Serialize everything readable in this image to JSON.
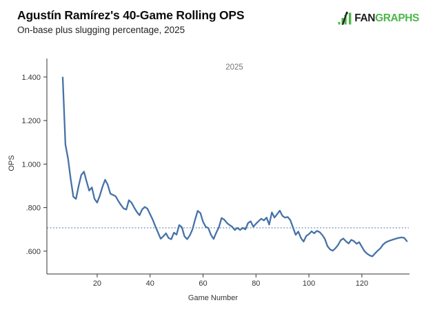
{
  "header": {
    "title": "Agustín Ramírez's 40-Game Rolling OPS",
    "subtitle": "On-base plus slugging percentage, 2025"
  },
  "logo": {
    "fan": "FAN",
    "graphs": "GRAPHS",
    "green": "#4db748",
    "dark": "#1e1e1e"
  },
  "chart_data": {
    "type": "line",
    "title": "Agustín Ramírez's 40-Game Rolling OPS",
    "subtitle": "On-base plus slugging percentage, 2025",
    "xlabel": "Game Number",
    "ylabel": "OPS",
    "legend": {
      "label": "2025",
      "position": "top-center"
    },
    "grid": false,
    "xlim": [
      1,
      138
    ],
    "ylim": [
      0.495,
      1.485
    ],
    "x_ticks": [
      20,
      40,
      60,
      80,
      100,
      120
    ],
    "y_ticks": [
      {
        "v": 1.4,
        "label": "1.400"
      },
      {
        "v": 1.2,
        "label": "1.200"
      },
      {
        "v": 1.0,
        "label": "1.000"
      },
      {
        "v": 0.8,
        "label": ".800"
      },
      {
        "v": 0.6,
        "label": ".600"
      }
    ],
    "reference_line": {
      "value": 0.707,
      "style": "dotted",
      "color": "#7e9cc2"
    },
    "line_color": "#4572a7",
    "axis_color": "#333333",
    "series": [
      {
        "name": "2025",
        "points": [
          [
            7,
            1.398
          ],
          [
            8,
            1.09
          ],
          [
            9,
            1.025
          ],
          [
            10,
            0.93
          ],
          [
            11,
            0.85
          ],
          [
            12,
            0.84
          ],
          [
            13,
            0.9
          ],
          [
            14,
            0.95
          ],
          [
            15,
            0.965
          ],
          [
            16,
            0.92
          ],
          [
            17,
            0.878
          ],
          [
            18,
            0.893
          ],
          [
            19,
            0.84
          ],
          [
            20,
            0.823
          ],
          [
            21,
            0.855
          ],
          [
            22,
            0.895
          ],
          [
            23,
            0.928
          ],
          [
            24,
            0.905
          ],
          [
            25,
            0.864
          ],
          [
            26,
            0.858
          ],
          [
            27,
            0.852
          ],
          [
            28,
            0.83
          ],
          [
            29,
            0.812
          ],
          [
            30,
            0.796
          ],
          [
            31,
            0.791
          ],
          [
            32,
            0.834
          ],
          [
            33,
            0.822
          ],
          [
            34,
            0.8
          ],
          [
            35,
            0.78
          ],
          [
            36,
            0.765
          ],
          [
            37,
            0.792
          ],
          [
            38,
            0.803
          ],
          [
            39,
            0.795
          ],
          [
            40,
            0.77
          ],
          [
            41,
            0.744
          ],
          [
            42,
            0.714
          ],
          [
            43,
            0.685
          ],
          [
            44,
            0.657
          ],
          [
            45,
            0.668
          ],
          [
            46,
            0.682
          ],
          [
            47,
            0.66
          ],
          [
            48,
            0.655
          ],
          [
            49,
            0.685
          ],
          [
            50,
            0.676
          ],
          [
            51,
            0.72
          ],
          [
            52,
            0.71
          ],
          [
            53,
            0.668
          ],
          [
            54,
            0.655
          ],
          [
            55,
            0.672
          ],
          [
            56,
            0.7
          ],
          [
            57,
            0.745
          ],
          [
            58,
            0.785
          ],
          [
            59,
            0.775
          ],
          [
            60,
            0.735
          ],
          [
            61,
            0.712
          ],
          [
            62,
            0.706
          ],
          [
            63,
            0.675
          ],
          [
            64,
            0.656
          ],
          [
            65,
            0.685
          ],
          [
            66,
            0.71
          ],
          [
            67,
            0.752
          ],
          [
            68,
            0.745
          ],
          [
            69,
            0.73
          ],
          [
            70,
            0.72
          ],
          [
            71,
            0.712
          ],
          [
            72,
            0.697
          ],
          [
            73,
            0.707
          ],
          [
            74,
            0.697
          ],
          [
            75,
            0.707
          ],
          [
            76,
            0.7
          ],
          [
            77,
            0.729
          ],
          [
            78,
            0.737
          ],
          [
            79,
            0.712
          ],
          [
            80,
            0.726
          ],
          [
            81,
            0.738
          ],
          [
            82,
            0.749
          ],
          [
            83,
            0.741
          ],
          [
            84,
            0.754
          ],
          [
            85,
            0.722
          ],
          [
            86,
            0.778
          ],
          [
            87,
            0.754
          ],
          [
            88,
            0.77
          ],
          [
            89,
            0.786
          ],
          [
            90,
            0.762
          ],
          [
            91,
            0.754
          ],
          [
            92,
            0.757
          ],
          [
            93,
            0.742
          ],
          [
            94,
            0.708
          ],
          [
            95,
            0.675
          ],
          [
            96,
            0.69
          ],
          [
            97,
            0.66
          ],
          [
            98,
            0.644
          ],
          [
            99,
            0.67
          ],
          [
            100,
            0.678
          ],
          [
            101,
            0.691
          ],
          [
            102,
            0.682
          ],
          [
            103,
            0.693
          ],
          [
            104,
            0.688
          ],
          [
            105,
            0.675
          ],
          [
            106,
            0.657
          ],
          [
            107,
            0.623
          ],
          [
            108,
            0.608
          ],
          [
            109,
            0.602
          ],
          [
            110,
            0.613
          ],
          [
            111,
            0.628
          ],
          [
            112,
            0.65
          ],
          [
            113,
            0.658
          ],
          [
            114,
            0.645
          ],
          [
            115,
            0.635
          ],
          [
            116,
            0.652
          ],
          [
            117,
            0.646
          ],
          [
            118,
            0.634
          ],
          [
            119,
            0.641
          ],
          [
            120,
            0.62
          ],
          [
            121,
            0.6
          ],
          [
            122,
            0.588
          ],
          [
            123,
            0.58
          ],
          [
            124,
            0.576
          ],
          [
            125,
            0.59
          ],
          [
            126,
            0.602
          ],
          [
            127,
            0.613
          ],
          [
            128,
            0.63
          ],
          [
            129,
            0.64
          ],
          [
            130,
            0.646
          ],
          [
            131,
            0.65
          ],
          [
            132,
            0.654
          ],
          [
            133,
            0.658
          ],
          [
            134,
            0.661
          ],
          [
            135,
            0.663
          ],
          [
            136,
            0.661
          ],
          [
            137,
            0.646
          ]
        ]
      }
    ]
  }
}
